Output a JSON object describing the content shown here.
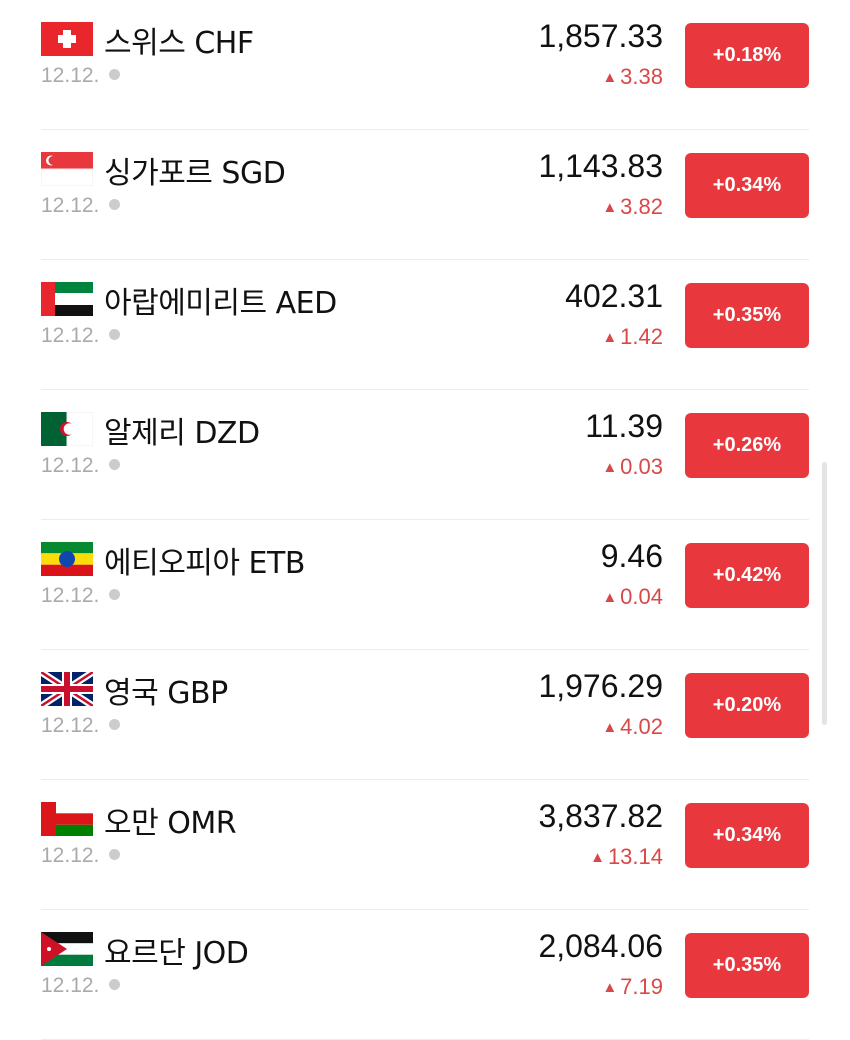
{
  "accent_color": "#e8373d",
  "rows": [
    {
      "flag": "switzerland",
      "name": "스위스 CHF",
      "date": "12.12.",
      "price": "1,857.33",
      "change": "3.38",
      "percent": "+0.18%"
    },
    {
      "flag": "singapore",
      "name": "싱가포르 SGD",
      "date": "12.12.",
      "price": "1,143.83",
      "change": "3.82",
      "percent": "+0.34%"
    },
    {
      "flag": "uae",
      "name": "아랍에미리트 AED",
      "date": "12.12.",
      "price": "402.31",
      "change": "1.42",
      "percent": "+0.35%"
    },
    {
      "flag": "algeria",
      "name": "알제리 DZD",
      "date": "12.12.",
      "price": "11.39",
      "change": "0.03",
      "percent": "+0.26%"
    },
    {
      "flag": "ethiopia",
      "name": "에티오피아 ETB",
      "date": "12.12.",
      "price": "9.46",
      "change": "0.04",
      "percent": "+0.42%"
    },
    {
      "flag": "uk",
      "name": "영국 GBP",
      "date": "12.12.",
      "price": "1,976.29",
      "change": "4.02",
      "percent": "+0.20%"
    },
    {
      "flag": "oman",
      "name": "오만 OMR",
      "date": "12.12.",
      "price": "3,837.82",
      "change": "13.14",
      "percent": "+0.34%"
    },
    {
      "flag": "jordan",
      "name": "요르단 JOD",
      "date": "12.12.",
      "price": "2,084.06",
      "change": "7.19",
      "percent": "+0.35%"
    }
  ]
}
